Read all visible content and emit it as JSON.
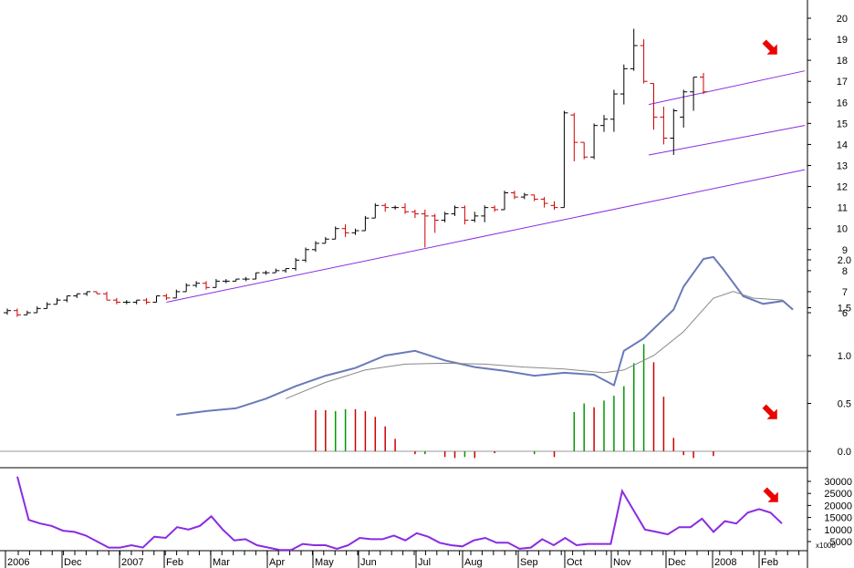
{
  "chart_data": [
    {
      "type": "ohlc",
      "panel": "price",
      "ylim": [
        5.5,
        20.5
      ],
      "y_ticks": [
        "6",
        "7",
        "8",
        "9",
        "10",
        "11",
        "12",
        "13",
        "14",
        "15",
        "16",
        "17",
        "18",
        "19",
        "20"
      ],
      "x_labels": [
        "2006",
        "Dec",
        "2007",
        "Feb",
        "Mar",
        "Apr",
        "May",
        "Jun",
        "Jul",
        "Aug",
        "Sep",
        "Oct",
        "Nov",
        "Dec",
        "2008",
        "Feb"
      ],
      "bar_up_color": "#000000",
      "bar_down_color": "#cc0000",
      "trendline_color": "#8a2be2",
      "bars": [
        {
          "o": 6.0,
          "h": 6.2,
          "l": 5.9,
          "c": 6.1
        },
        {
          "o": 6.1,
          "h": 6.2,
          "l": 5.8,
          "c": 5.9
        },
        {
          "o": 5.9,
          "h": 6.1,
          "l": 5.9,
          "c": 6.0
        },
        {
          "o": 6.0,
          "h": 6.3,
          "l": 6.0,
          "c": 6.2
        },
        {
          "o": 6.2,
          "h": 6.5,
          "l": 6.2,
          "c": 6.4
        },
        {
          "o": 6.4,
          "h": 6.7,
          "l": 6.4,
          "c": 6.6
        },
        {
          "o": 6.6,
          "h": 6.8,
          "l": 6.5,
          "c": 6.8
        },
        {
          "o": 6.8,
          "h": 6.9,
          "l": 6.7,
          "c": 6.9
        },
        {
          "o": 6.9,
          "h": 7.0,
          "l": 6.8,
          "c": 7.0
        },
        {
          "o": 7.0,
          "h": 7.0,
          "l": 6.9,
          "c": 6.9
        },
        {
          "o": 6.9,
          "h": 7.0,
          "l": 6.6,
          "c": 6.6
        },
        {
          "o": 6.6,
          "h": 6.7,
          "l": 6.4,
          "c": 6.5
        },
        {
          "o": 6.5,
          "h": 6.6,
          "l": 6.4,
          "c": 6.5
        },
        {
          "o": 6.5,
          "h": 6.6,
          "l": 6.4,
          "c": 6.6
        },
        {
          "o": 6.6,
          "h": 6.7,
          "l": 6.4,
          "c": 6.5
        },
        {
          "o": 6.5,
          "h": 6.8,
          "l": 6.5,
          "c": 6.8
        },
        {
          "o": 6.8,
          "h": 6.9,
          "l": 6.6,
          "c": 6.7
        },
        {
          "o": 6.7,
          "h": 7.1,
          "l": 6.7,
          "c": 7.0
        },
        {
          "o": 7.0,
          "h": 7.4,
          "l": 7.0,
          "c": 7.3
        },
        {
          "o": 7.3,
          "h": 7.5,
          "l": 7.2,
          "c": 7.4
        },
        {
          "o": 7.4,
          "h": 7.5,
          "l": 7.1,
          "c": 7.2
        },
        {
          "o": 7.2,
          "h": 7.6,
          "l": 7.2,
          "c": 7.5
        },
        {
          "o": 7.5,
          "h": 7.6,
          "l": 7.4,
          "c": 7.5
        },
        {
          "o": 7.5,
          "h": 7.6,
          "l": 7.5,
          "c": 7.6
        },
        {
          "o": 7.6,
          "h": 7.7,
          "l": 7.5,
          "c": 7.6
        },
        {
          "o": 7.6,
          "h": 7.9,
          "l": 7.6,
          "c": 7.9
        },
        {
          "o": 7.9,
          "h": 8.0,
          "l": 7.8,
          "c": 7.9
        },
        {
          "o": 7.9,
          "h": 8.1,
          "l": 7.9,
          "c": 8.0
        },
        {
          "o": 8.0,
          "h": 8.1,
          "l": 7.9,
          "c": 8.1
        },
        {
          "o": 8.1,
          "h": 8.6,
          "l": 8.0,
          "c": 8.5
        },
        {
          "o": 8.5,
          "h": 9.1,
          "l": 8.4,
          "c": 9.0
        },
        {
          "o": 9.0,
          "h": 9.4,
          "l": 8.9,
          "c": 9.3
        },
        {
          "o": 9.3,
          "h": 9.6,
          "l": 9.3,
          "c": 9.5
        },
        {
          "o": 9.5,
          "h": 10.1,
          "l": 9.5,
          "c": 10.0
        },
        {
          "o": 10.0,
          "h": 10.2,
          "l": 9.6,
          "c": 9.8
        },
        {
          "o": 9.8,
          "h": 10.0,
          "l": 9.7,
          "c": 9.9
        },
        {
          "o": 9.9,
          "h": 10.6,
          "l": 9.9,
          "c": 10.5
        },
        {
          "o": 10.5,
          "h": 11.2,
          "l": 10.5,
          "c": 11.1
        },
        {
          "o": 11.1,
          "h": 11.2,
          "l": 10.8,
          "c": 11.0
        },
        {
          "o": 11.0,
          "h": 11.1,
          "l": 10.9,
          "c": 11.0
        },
        {
          "o": 11.0,
          "h": 11.2,
          "l": 10.7,
          "c": 10.8
        },
        {
          "o": 10.8,
          "h": 10.9,
          "l": 10.5,
          "c": 10.7
        },
        {
          "o": 10.7,
          "h": 10.9,
          "l": 9.1,
          "c": 10.6
        },
        {
          "o": 10.6,
          "h": 10.7,
          "l": 9.8,
          "c": 10.4
        },
        {
          "o": 10.4,
          "h": 10.8,
          "l": 10.3,
          "c": 10.7
        },
        {
          "o": 10.7,
          "h": 11.1,
          "l": 10.6,
          "c": 11.0
        },
        {
          "o": 11.0,
          "h": 11.1,
          "l": 10.2,
          "c": 10.4
        },
        {
          "o": 10.4,
          "h": 10.8,
          "l": 10.3,
          "c": 10.6
        },
        {
          "o": 10.6,
          "h": 11.1,
          "l": 10.3,
          "c": 11.0
        },
        {
          "o": 11.0,
          "h": 11.1,
          "l": 10.8,
          "c": 10.9
        },
        {
          "o": 10.9,
          "h": 11.8,
          "l": 10.9,
          "c": 11.7
        },
        {
          "o": 11.7,
          "h": 11.8,
          "l": 11.4,
          "c": 11.5
        },
        {
          "o": 11.5,
          "h": 11.7,
          "l": 11.4,
          "c": 11.6
        },
        {
          "o": 11.6,
          "h": 11.6,
          "l": 11.3,
          "c": 11.4
        },
        {
          "o": 11.4,
          "h": 11.5,
          "l": 11.0,
          "c": 11.2
        },
        {
          "o": 11.1,
          "h": 11.3,
          "l": 10.9,
          "c": 11.0
        },
        {
          "o": 11.0,
          "h": 15.6,
          "l": 11.0,
          "c": 15.5
        },
        {
          "o": 15.4,
          "h": 15.5,
          "l": 13.2,
          "c": 14.1
        },
        {
          "o": 14.1,
          "h": 14.1,
          "l": 13.3,
          "c": 13.4
        },
        {
          "o": 13.4,
          "h": 15.0,
          "l": 13.3,
          "c": 14.9
        },
        {
          "o": 14.9,
          "h": 15.4,
          "l": 14.6,
          "c": 15.2
        },
        {
          "o": 15.2,
          "h": 16.6,
          "l": 14.6,
          "c": 16.4
        },
        {
          "o": 16.4,
          "h": 17.8,
          "l": 15.9,
          "c": 17.6
        },
        {
          "o": 17.6,
          "h": 19.5,
          "l": 17.5,
          "c": 18.7
        },
        {
          "o": 18.7,
          "h": 19.0,
          "l": 16.9,
          "c": 17.0
        },
        {
          "o": 16.9,
          "h": 16.9,
          "l": 14.7,
          "c": 15.3
        },
        {
          "o": 15.3,
          "h": 15.8,
          "l": 14.0,
          "c": 14.3
        },
        {
          "o": 14.3,
          "h": 15.7,
          "l": 13.5,
          "c": 15.6
        },
        {
          "o": 15.3,
          "h": 16.6,
          "l": 14.8,
          "c": 16.5
        },
        {
          "o": 16.5,
          "h": 17.2,
          "l": 15.6,
          "c": 17.2
        },
        {
          "o": 17.2,
          "h": 17.4,
          "l": 16.4,
          "c": 16.5
        }
      ]
    },
    {
      "type": "line+bar",
      "panel": "indicator",
      "ylim": [
        -0.15,
        2.2
      ],
      "y_ticks": [
        "0.0",
        "0.5",
        "1.0",
        "1.5",
        "2.0"
      ],
      "fast_line": [
        [
          17,
          0.38
        ],
        [
          20,
          0.42
        ],
        [
          23,
          0.45
        ],
        [
          26,
          0.55
        ],
        [
          29,
          0.68
        ],
        [
          32,
          0.79
        ],
        [
          35,
          0.87
        ],
        [
          38,
          1.0
        ],
        [
          41,
          1.05
        ],
        [
          44,
          0.95
        ],
        [
          47,
          0.88
        ],
        [
          50,
          0.84
        ],
        [
          53,
          0.79
        ],
        [
          56,
          0.82
        ],
        [
          59,
          0.8
        ],
        [
          61,
          0.69
        ],
        [
          62,
          1.05
        ],
        [
          64,
          1.18
        ],
        [
          67,
          1.48
        ],
        [
          68,
          1.72
        ],
        [
          70,
          2.01
        ],
        [
          71,
          2.03
        ],
        [
          72,
          1.9
        ],
        [
          74,
          1.62
        ],
        [
          76,
          1.54
        ],
        [
          78,
          1.57
        ],
        [
          79,
          1.48
        ]
      ],
      "slow_line": [
        [
          28,
          0.55
        ],
        [
          32,
          0.72
        ],
        [
          36,
          0.85
        ],
        [
          40,
          0.91
        ],
        [
          44,
          0.92
        ],
        [
          48,
          0.91
        ],
        [
          52,
          0.88
        ],
        [
          56,
          0.86
        ],
        [
          60,
          0.82
        ],
        [
          62,
          0.85
        ],
        [
          65,
          1.0
        ],
        [
          68,
          1.25
        ],
        [
          71,
          1.6
        ],
        [
          73,
          1.67
        ],
        [
          75,
          1.6
        ],
        [
          78,
          1.58
        ]
      ],
      "histogram": [
        {
          "i": 31,
          "v": 0.43,
          "c": "#cc0000"
        },
        {
          "i": 32,
          "v": 0.43,
          "c": "#cc0000"
        },
        {
          "i": 33,
          "v": 0.42,
          "c": "#009900"
        },
        {
          "i": 34,
          "v": 0.44,
          "c": "#009900"
        },
        {
          "i": 35,
          "v": 0.44,
          "c": "#cc0000"
        },
        {
          "i": 36,
          "v": 0.42,
          "c": "#cc0000"
        },
        {
          "i": 37,
          "v": 0.36,
          "c": "#cc0000"
        },
        {
          "i": 38,
          "v": 0.26,
          "c": "#cc0000"
        },
        {
          "i": 39,
          "v": 0.13,
          "c": "#cc0000"
        },
        {
          "i": 41,
          "v": -0.03,
          "c": "#cc0000"
        },
        {
          "i": 42,
          "v": -0.03,
          "c": "#009900"
        },
        {
          "i": 44,
          "v": -0.06,
          "c": "#cc0000"
        },
        {
          "i": 45,
          "v": -0.07,
          "c": "#cc0000"
        },
        {
          "i": 46,
          "v": -0.06,
          "c": "#009900"
        },
        {
          "i": 47,
          "v": -0.07,
          "c": "#cc0000"
        },
        {
          "i": 49,
          "v": -0.02,
          "c": "#cc0000"
        },
        {
          "i": 53,
          "v": -0.03,
          "c": "#009900"
        },
        {
          "i": 55,
          "v": -0.06,
          "c": "#cc0000"
        },
        {
          "i": 57,
          "v": 0.41,
          "c": "#009900"
        },
        {
          "i": 58,
          "v": 0.5,
          "c": "#009900"
        },
        {
          "i": 59,
          "v": 0.46,
          "c": "#cc0000"
        },
        {
          "i": 60,
          "v": 0.53,
          "c": "#009900"
        },
        {
          "i": 61,
          "v": 0.58,
          "c": "#009900"
        },
        {
          "i": 62,
          "v": 0.68,
          "c": "#009900"
        },
        {
          "i": 63,
          "v": 0.92,
          "c": "#009900"
        },
        {
          "i": 64,
          "v": 1.12,
          "c": "#009900"
        },
        {
          "i": 65,
          "v": 0.93,
          "c": "#cc0000"
        },
        {
          "i": 66,
          "v": 0.57,
          "c": "#cc0000"
        },
        {
          "i": 67,
          "v": 0.14,
          "c": "#cc0000"
        },
        {
          "i": 68,
          "v": -0.04,
          "c": "#cc0000"
        },
        {
          "i": 69,
          "v": -0.07,
          "c": "#cc0000"
        },
        {
          "i": 71,
          "v": -0.05,
          "c": "#cc0000"
        }
      ]
    },
    {
      "type": "line",
      "panel": "volume",
      "ylim": [
        -1000,
        35000
      ],
      "y_ticks": [
        "5000",
        "10000",
        "15000",
        "20000",
        "25000",
        "30000"
      ],
      "unit_label": "x1000",
      "values": [
        32000,
        14000,
        12500,
        11500,
        9500,
        9000,
        7500,
        5000,
        2500,
        2500,
        3500,
        2500,
        7000,
        6500,
        11000,
        10000,
        11500,
        15500,
        10000,
        5500,
        6000,
        3500,
        2500,
        1500,
        1500,
        4000,
        3500,
        3500,
        2000,
        3500,
        6500,
        6000,
        6000,
        7500,
        5500,
        8500,
        7000,
        4500,
        3500,
        3000,
        5500,
        6500,
        4500,
        4500,
        2000,
        2500,
        6000,
        3500,
        6500,
        3500,
        4000,
        4000,
        4000,
        26000,
        18000,
        10000,
        9000,
        8000,
        11000,
        11000,
        14500,
        9000,
        13500,
        12500,
        17000,
        18500,
        17000,
        12500
      ]
    }
  ],
  "annotations": {
    "arrow_color": "#ee0000",
    "arrow_icon": "red-down-right-arrow"
  }
}
